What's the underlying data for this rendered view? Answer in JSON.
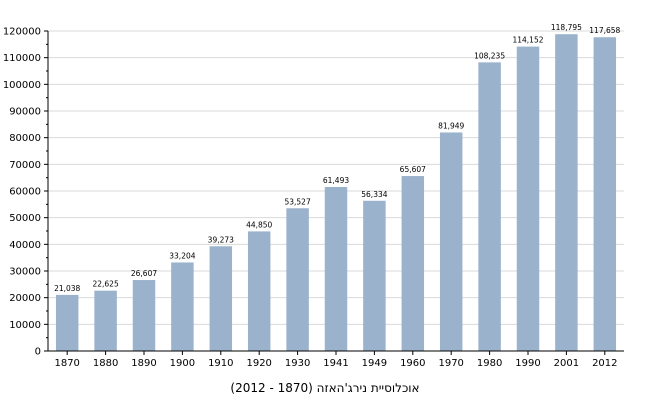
{
  "chart_data": {
    "type": "bar",
    "title": "",
    "xlabel": "",
    "ylabel": "",
    "caption": "אוכלוסיית נירג'האזה (1870 - 2012)",
    "categories": [
      "1870",
      "1880",
      "1890",
      "1900",
      "1910",
      "1920",
      "1930",
      "1941",
      "1949",
      "1960",
      "1970",
      "1980",
      "1990",
      "2001",
      "2012"
    ],
    "values": [
      21038,
      22625,
      26607,
      33204,
      39273,
      44850,
      53527,
      61493,
      56334,
      65607,
      81949,
      108235,
      114152,
      118795,
      117658
    ],
    "value_labels": [
      "21,038",
      "22,625",
      "26,607",
      "33,204",
      "39,273",
      "44,850",
      "53,527",
      "61,493",
      "56,334",
      "65,607",
      "81,949",
      "108,235",
      "114,152",
      "118,795",
      "117,658"
    ],
    "ylim": [
      0,
      120000
    ],
    "yticks": [
      0,
      10000,
      20000,
      30000,
      40000,
      50000,
      60000,
      70000,
      80000,
      90000,
      100000,
      110000,
      120000
    ],
    "ytick_labels": [
      "0",
      "10000",
      "20000",
      "30000",
      "40000",
      "50000",
      "60000",
      "70000",
      "80000",
      "90000",
      "100000",
      "110000",
      "120000"
    ],
    "grid": true,
    "bar_color": "#9ab2cb",
    "grid_color": "#d9d9d9"
  }
}
